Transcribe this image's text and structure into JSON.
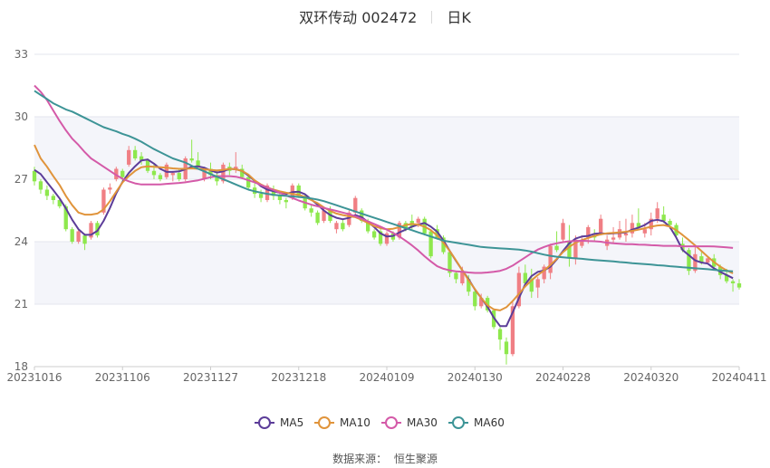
{
  "header": {
    "stock_name": "双环传动 002472",
    "period": "日K"
  },
  "footer": {
    "source_label": "数据来源：",
    "source_name": "恒生聚源"
  },
  "colors": {
    "up": "#f07f84",
    "down": "#8ee84d",
    "ma5": "#5c3d99",
    "ma10": "#e0943b",
    "ma30": "#d45aa8",
    "ma60": "#3d9496"
  },
  "chart_data": {
    "type": "candlestick",
    "x_tick_labels": [
      "20231016",
      "20231106",
      "20231127",
      "20231218",
      "20240109",
      "20240130",
      "20240228",
      "20240320",
      "20240411"
    ],
    "ylim": [
      18,
      33
    ],
    "y_ticks": [
      18,
      21,
      24,
      27,
      30,
      33
    ],
    "grid": true,
    "legend_position": "bottom-center",
    "legend": [
      "MA5",
      "MA10",
      "MA30",
      "MA60"
    ],
    "candles": [
      [
        27.4,
        27.6,
        26.7,
        26.9
      ],
      [
        26.9,
        27.0,
        26.3,
        26.5
      ],
      [
        26.5,
        26.7,
        26.0,
        26.2
      ],
      [
        26.2,
        26.3,
        25.8,
        26.0
      ],
      [
        26.0,
        26.1,
        25.6,
        25.7
      ],
      [
        25.7,
        25.8,
        24.5,
        24.6
      ],
      [
        24.6,
        24.7,
        23.9,
        24.0
      ],
      [
        24.0,
        24.6,
        23.9,
        24.5
      ],
      [
        24.3,
        24.4,
        23.6,
        23.9
      ],
      [
        24.2,
        25.0,
        24.1,
        24.9
      ],
      [
        24.9,
        25.0,
        24.2,
        24.3
      ],
      [
        25.4,
        26.6,
        25.3,
        26.5
      ],
      [
        26.5,
        26.8,
        26.3,
        26.6
      ],
      [
        27.0,
        27.6,
        26.9,
        27.5
      ],
      [
        27.4,
        27.5,
        26.8,
        27.1
      ],
      [
        27.7,
        28.6,
        27.6,
        28.4
      ],
      [
        28.4,
        28.6,
        27.9,
        28.0
      ],
      [
        28.1,
        28.3,
        27.7,
        27.9
      ],
      [
        27.9,
        28.0,
        27.3,
        27.4
      ],
      [
        27.4,
        27.7,
        27.0,
        27.2
      ],
      [
        27.2,
        27.3,
        26.9,
        27.0
      ],
      [
        27.1,
        27.8,
        27.0,
        27.7
      ],
      [
        27.2,
        27.4,
        26.9,
        27.3
      ],
      [
        27.3,
        27.5,
        26.9,
        27.0
      ],
      [
        27.0,
        28.1,
        26.9,
        28.0
      ],
      [
        28.0,
        28.9,
        27.8,
        27.9
      ],
      [
        27.9,
        28.3,
        27.5,
        27.6
      ],
      [
        27.0,
        27.6,
        26.9,
        27.5
      ],
      [
        27.5,
        27.8,
        27.0,
        27.2
      ],
      [
        27.2,
        27.4,
        26.7,
        26.9
      ],
      [
        26.9,
        27.8,
        26.8,
        27.7
      ],
      [
        27.6,
        27.8,
        27.2,
        27.4
      ],
      [
        27.5,
        28.3,
        27.3,
        27.6
      ],
      [
        27.5,
        27.7,
        27.0,
        27.1
      ],
      [
        27.1,
        27.2,
        26.5,
        26.6
      ],
      [
        26.6,
        26.8,
        26.1,
        26.3
      ],
      [
        26.3,
        26.5,
        25.9,
        26.1
      ],
      [
        26.0,
        26.8,
        25.9,
        26.7
      ],
      [
        26.4,
        26.7,
        26.0,
        26.2
      ],
      [
        26.2,
        26.4,
        25.8,
        26.0
      ],
      [
        26.0,
        26.1,
        25.6,
        25.9
      ],
      [
        26.1,
        26.8,
        26.0,
        26.7
      ],
      [
        26.7,
        26.8,
        26.1,
        26.2
      ],
      [
        26.2,
        26.3,
        25.5,
        25.6
      ],
      [
        25.6,
        25.8,
        25.2,
        25.4
      ],
      [
        25.4,
        25.5,
        24.8,
        24.9
      ],
      [
        25.0,
        25.6,
        24.9,
        25.5
      ],
      [
        25.5,
        25.7,
        24.9,
        25.0
      ],
      [
        24.6,
        25.0,
        24.4,
        24.9
      ],
      [
        24.9,
        25.1,
        24.5,
        24.6
      ],
      [
        24.8,
        25.5,
        24.7,
        25.4
      ],
      [
        25.4,
        26.2,
        25.3,
        26.1
      ],
      [
        25.5,
        25.6,
        24.9,
        25.0
      ],
      [
        25.0,
        25.1,
        24.4,
        24.5
      ],
      [
        24.5,
        24.6,
        24.1,
        24.2
      ],
      [
        24.5,
        24.7,
        23.8,
        23.9
      ],
      [
        23.9,
        24.5,
        23.8,
        24.4
      ],
      [
        24.4,
        24.5,
        24.0,
        24.1
      ],
      [
        24.2,
        25.0,
        24.1,
        24.9
      ],
      [
        24.9,
        25.0,
        24.5,
        24.6
      ],
      [
        25.0,
        25.3,
        24.6,
        24.7
      ],
      [
        24.9,
        25.2,
        24.7,
        25.1
      ],
      [
        25.1,
        25.2,
        24.3,
        24.4
      ],
      [
        24.5,
        24.6,
        23.2,
        23.3
      ],
      [
        24.6,
        24.8,
        24.1,
        24.2
      ],
      [
        24.2,
        24.3,
        23.4,
        23.5
      ],
      [
        23.5,
        23.6,
        22.3,
        22.5
      ],
      [
        22.5,
        22.6,
        22.0,
        22.2
      ],
      [
        22.0,
        22.8,
        21.9,
        22.6
      ],
      [
        22.2,
        22.4,
        21.4,
        21.6
      ],
      [
        21.6,
        21.7,
        20.7,
        20.9
      ],
      [
        20.9,
        21.5,
        20.8,
        21.3
      ],
      [
        21.3,
        21.4,
        20.6,
        20.7
      ],
      [
        20.7,
        20.8,
        19.8,
        19.9
      ],
      [
        19.8,
        19.9,
        18.8,
        19.3
      ],
      [
        19.2,
        19.4,
        18.1,
        18.6
      ],
      [
        18.6,
        21.1,
        18.5,
        20.9
      ],
      [
        20.9,
        22.8,
        20.8,
        22.5
      ],
      [
        22.5,
        22.9,
        21.8,
        22.0
      ],
      [
        22.2,
        22.7,
        21.3,
        21.6
      ],
      [
        21.8,
        22.3,
        21.3,
        22.2
      ],
      [
        22.2,
        22.9,
        22.0,
        22.8
      ],
      [
        22.5,
        23.9,
        22.2,
        23.8
      ],
      [
        23.8,
        24.5,
        23.5,
        23.6
      ],
      [
        24.1,
        25.1,
        24.0,
        24.9
      ],
      [
        24.0,
        24.8,
        22.8,
        23.2
      ],
      [
        23.2,
        24.3,
        22.9,
        24.1
      ],
      [
        23.8,
        24.3,
        23.7,
        24.0
      ],
      [
        24.2,
        24.8,
        23.9,
        24.7
      ],
      [
        24.3,
        24.6,
        24.0,
        24.2
      ],
      [
        24.4,
        25.3,
        24.3,
        25.1
      ],
      [
        23.8,
        24.3,
        23.6,
        24.1
      ],
      [
        24.1,
        24.7,
        23.9,
        24.2
      ],
      [
        24.2,
        25.0,
        24.1,
        24.6
      ],
      [
        24.3,
        25.1,
        24.0,
        24.4
      ],
      [
        24.4,
        25.3,
        24.2,
        24.9
      ],
      [
        24.9,
        25.6,
        24.6,
        24.7
      ],
      [
        24.4,
        24.9,
        24.2,
        24.6
      ],
      [
        24.6,
        25.4,
        24.3,
        25.1
      ],
      [
        25.1,
        25.9,
        24.9,
        25.6
      ],
      [
        25.3,
        25.7,
        24.9,
        25.0
      ],
      [
        25.0,
        25.1,
        24.6,
        24.8
      ],
      [
        24.8,
        24.9,
        24.2,
        24.3
      ],
      [
        23.9,
        24.2,
        23.5,
        23.6
      ],
      [
        23.6,
        23.7,
        22.4,
        22.6
      ],
      [
        22.6,
        23.8,
        22.5,
        23.4
      ],
      [
        23.3,
        23.5,
        22.9,
        23.0
      ],
      [
        23.0,
        23.3,
        22.9,
        23.2
      ],
      [
        23.2,
        23.4,
        22.7,
        22.8
      ],
      [
        22.8,
        22.9,
        22.2,
        22.4
      ],
      [
        22.4,
        22.7,
        22.0,
        22.1
      ],
      [
        22.1,
        22.2,
        21.6,
        22.0
      ],
      [
        22.0,
        22.2,
        21.7,
        21.8
      ]
    ],
    "series": [
      {
        "name": "MA5",
        "values": [
          27.45,
          27.25,
          26.85,
          26.48,
          26.08,
          25.6,
          25.05,
          24.6,
          24.33,
          24.33,
          24.52,
          25.0,
          25.62,
          26.32,
          26.88,
          27.3,
          27.62,
          27.9,
          27.95,
          27.75,
          27.5,
          27.35,
          27.35,
          27.38,
          27.48,
          27.6,
          27.62,
          27.55,
          27.42,
          27.32,
          27.38,
          27.5,
          27.48,
          27.4,
          27.18,
          26.92,
          26.66,
          26.5,
          26.42,
          26.35,
          26.3,
          26.38,
          26.4,
          26.28,
          26.03,
          25.78,
          25.5,
          25.28,
          25.15,
          25.08,
          25.15,
          25.28,
          25.18,
          24.95,
          24.7,
          24.4,
          24.25,
          24.28,
          24.45,
          24.58,
          24.72,
          24.82,
          24.9,
          24.72,
          24.48,
          24.06,
          23.55,
          23.08,
          22.62,
          22.2,
          21.7,
          21.3,
          20.88,
          20.35,
          19.95,
          19.95,
          20.6,
          21.3,
          21.95,
          22.35,
          22.55,
          22.62,
          22.8,
          23.15,
          23.55,
          23.92,
          24.15,
          24.25,
          24.28,
          24.38,
          24.4,
          24.38,
          24.4,
          24.42,
          24.45,
          24.58,
          24.68,
          24.8,
          25.0,
          25.05,
          24.98,
          24.7,
          24.2,
          23.6,
          23.35,
          23.1,
          23.0,
          22.95,
          22.72,
          22.55,
          22.4,
          22.25
        ]
      },
      {
        "name": "MA10",
        "values": [
          28.65,
          28.0,
          27.6,
          27.15,
          26.72,
          26.2,
          25.75,
          25.4,
          25.3,
          25.3,
          25.35,
          25.55,
          25.95,
          26.4,
          26.85,
          27.15,
          27.4,
          27.58,
          27.62,
          27.6,
          27.58,
          27.55,
          27.52,
          27.5,
          27.5,
          27.52,
          27.5,
          27.48,
          27.45,
          27.42,
          27.45,
          27.5,
          27.48,
          27.4,
          27.22,
          26.95,
          26.75,
          26.6,
          26.5,
          26.42,
          26.35,
          26.3,
          26.25,
          26.15,
          26.0,
          25.85,
          25.65,
          25.48,
          25.35,
          25.28,
          25.22,
          25.18,
          25.05,
          24.9,
          24.75,
          24.65,
          24.6,
          24.62,
          24.7,
          24.8,
          24.85,
          24.82,
          24.72,
          24.55,
          24.3,
          23.95,
          23.55,
          23.1,
          22.62,
          22.15,
          21.72,
          21.3,
          20.95,
          20.75,
          20.7,
          20.85,
          21.15,
          21.5,
          21.85,
          22.15,
          22.4,
          22.62,
          22.88,
          23.18,
          23.5,
          23.75,
          23.95,
          24.08,
          24.18,
          24.28,
          24.35,
          24.4,
          24.42,
          24.45,
          24.48,
          24.52,
          24.58,
          24.65,
          24.72,
          24.78,
          24.8,
          24.72,
          24.55,
          24.32,
          24.08,
          23.82,
          23.55,
          23.28,
          23.02,
          22.8,
          22.62,
          22.48
        ]
      },
      {
        "name": "MA30",
        "values": [
          31.5,
          31.2,
          30.8,
          30.3,
          29.8,
          29.35,
          28.95,
          28.65,
          28.3,
          28.0,
          27.8,
          27.6,
          27.4,
          27.2,
          27.02,
          26.9,
          26.8,
          26.75,
          26.75,
          26.75,
          26.75,
          26.78,
          26.8,
          26.82,
          26.85,
          26.9,
          26.95,
          27.02,
          27.1,
          27.15,
          27.15,
          27.15,
          27.12,
          27.05,
          26.95,
          26.85,
          26.72,
          26.6,
          26.48,
          26.35,
          26.22,
          26.1,
          25.98,
          25.88,
          25.78,
          25.7,
          25.62,
          25.55,
          25.48,
          25.4,
          25.32,
          25.22,
          25.1,
          24.98,
          24.85,
          24.72,
          24.58,
          24.42,
          24.25,
          24.05,
          23.82,
          23.58,
          23.3,
          23.05,
          22.82,
          22.7,
          22.62,
          22.58,
          22.55,
          22.52,
          22.5,
          22.5,
          22.52,
          22.55,
          22.6,
          22.7,
          22.85,
          23.05,
          23.25,
          23.45,
          23.62,
          23.75,
          23.85,
          23.92,
          23.98,
          24.02,
          24.03,
          24.05,
          24.03,
          24.02,
          24.0,
          23.95,
          23.92,
          23.9,
          23.88,
          23.88,
          23.86,
          23.85,
          23.83,
          23.82,
          23.8,
          23.8,
          23.8,
          23.78,
          23.78,
          23.78,
          23.78,
          23.78,
          23.77,
          23.75,
          23.73,
          23.7
        ]
      },
      {
        "name": "MA60",
        "values": [
          31.25,
          31.05,
          30.85,
          30.65,
          30.5,
          30.35,
          30.25,
          30.1,
          29.95,
          29.8,
          29.65,
          29.5,
          29.4,
          29.3,
          29.18,
          29.08,
          28.95,
          28.8,
          28.62,
          28.45,
          28.3,
          28.15,
          28.0,
          27.9,
          27.8,
          27.65,
          27.5,
          27.38,
          27.25,
          27.12,
          27.0,
          26.88,
          26.75,
          26.62,
          26.5,
          26.42,
          26.35,
          26.3,
          26.25,
          26.22,
          26.2,
          26.18,
          26.15,
          26.12,
          26.08,
          26.02,
          25.95,
          25.85,
          25.75,
          25.65,
          25.55,
          25.45,
          25.35,
          25.25,
          25.15,
          25.05,
          24.95,
          24.85,
          24.75,
          24.65,
          24.55,
          24.45,
          24.35,
          24.25,
          24.15,
          24.05,
          24.0,
          23.95,
          23.9,
          23.85,
          23.8,
          23.75,
          23.72,
          23.7,
          23.68,
          23.66,
          23.64,
          23.62,
          23.58,
          23.52,
          23.45,
          23.38,
          23.32,
          23.28,
          23.25,
          23.22,
          23.2,
          23.18,
          23.15,
          23.12,
          23.1,
          23.08,
          23.05,
          23.02,
          23.0,
          22.97,
          22.95,
          22.92,
          22.9,
          22.87,
          22.85,
          22.82,
          22.8,
          22.77,
          22.75,
          22.72,
          22.7,
          22.68,
          22.65,
          22.62,
          22.6,
          22.58
        ]
      }
    ]
  }
}
